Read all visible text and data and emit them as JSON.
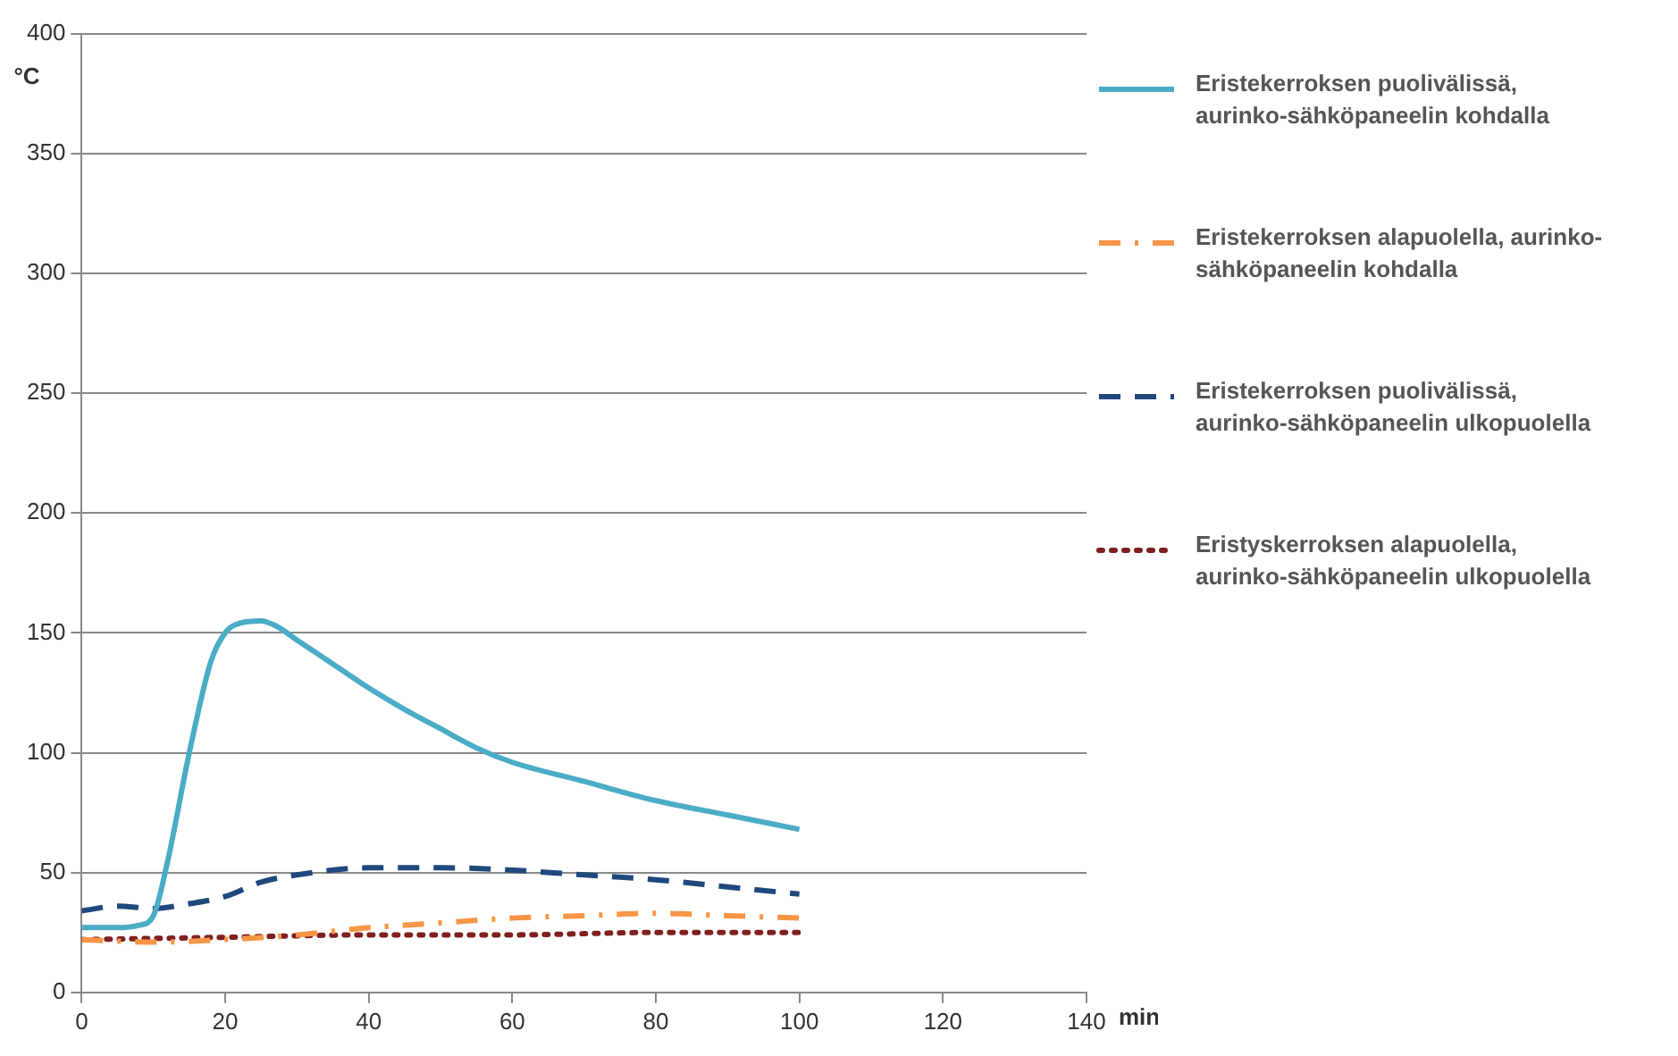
{
  "chart_data": {
    "type": "line",
    "xlabel": "min",
    "ylabel": "°C",
    "xlim": [
      0,
      140
    ],
    "xticks": [
      0,
      20,
      40,
      60,
      80,
      100,
      120,
      140
    ],
    "ylim": [
      0,
      400
    ],
    "yticks": [
      0,
      50,
      100,
      150,
      200,
      250,
      300,
      350,
      400
    ],
    "grid": "y",
    "legend": "right",
    "marker": "none",
    "series": [
      {
        "name": "Eristekerroksen puolivälissä, aurinko-sähköpaneelin kohdalla",
        "color": "#4bacc6",
        "line_style": "solid",
        "x": [
          0,
          5,
          8,
          10,
          12,
          15,
          18,
          20,
          22,
          25,
          27,
          30,
          35,
          40,
          45,
          50,
          55,
          60,
          70,
          80,
          90,
          100
        ],
        "values": [
          27,
          27,
          28,
          32,
          55,
          100,
          138,
          150,
          154,
          155,
          153,
          147,
          137,
          127,
          118,
          110,
          102,
          96,
          88,
          80,
          74,
          68
        ]
      },
      {
        "name": "Eristekerroksen alapuolella, aurinko-sähköpaneelin kohdalla",
        "color": "#f79646",
        "line_style": "dashdot",
        "x": [
          0,
          10,
          20,
          30,
          40,
          50,
          60,
          70,
          80,
          90,
          100
        ],
        "values": [
          22,
          21,
          22,
          24,
          27,
          29,
          31,
          32,
          33,
          32,
          31
        ]
      },
      {
        "name": "Eristekerroksen puolivälissä, aurinko-sähköpaneelin ulkopuolella",
        "color": "#1f497d",
        "line_style": "dashed",
        "x": [
          0,
          5,
          10,
          15,
          20,
          25,
          30,
          40,
          50,
          60,
          70,
          80,
          90,
          100
        ],
        "values": [
          34,
          36,
          35,
          37,
          40,
          46,
          49,
          52,
          52,
          51,
          49,
          47,
          44,
          41
        ]
      },
      {
        "name": "Eristyskerroksen alapuolella, aurinko-sähköpaneelin ulkopuolella",
        "color": "#7f1f1f",
        "line_style": "dotted",
        "x": [
          0,
          20,
          40,
          60,
          80,
          100
        ],
        "values": [
          22,
          23,
          24,
          24,
          25,
          25
        ]
      }
    ]
  }
}
